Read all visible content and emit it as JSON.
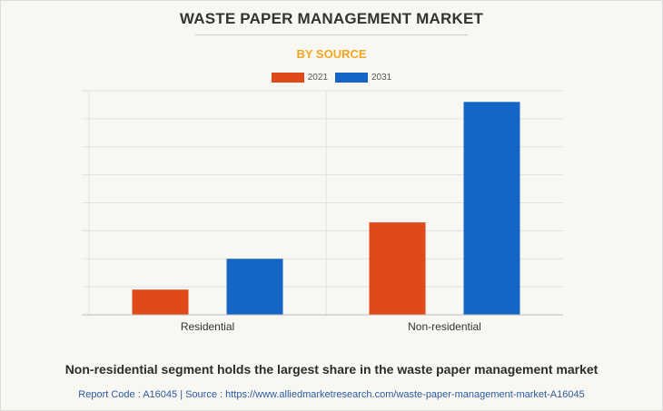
{
  "title": "WASTE PAPER MANAGEMENT MARKET",
  "subtitle": "BY SOURCE",
  "footer": {
    "headline": "Non-residential segment holds the largest share in the waste paper management market",
    "source": "Report Code : A16045  |  Source : https://www.alliedmarketresearch.com/waste-paper-management-market-A16045"
  },
  "colors": {
    "series_2021": "#e04a1a",
    "series_2031": "#1565c6",
    "grid": "#e2e2e2",
    "axis": "#bbbbbb"
  },
  "chart_data": {
    "type": "bar",
    "title": "WASTE PAPER MANAGEMENT MARKET",
    "subtitle": "BY SOURCE",
    "categories": [
      "Residential",
      "Non-residential"
    ],
    "series": [
      {
        "name": "2021",
        "values": [
          0.9,
          3.3
        ]
      },
      {
        "name": "2031",
        "values": [
          2.0,
          7.6
        ]
      }
    ],
    "ylim": [
      0,
      8
    ],
    "xlabel": "",
    "ylabel": "",
    "grid": true,
    "legend": "top-center"
  }
}
